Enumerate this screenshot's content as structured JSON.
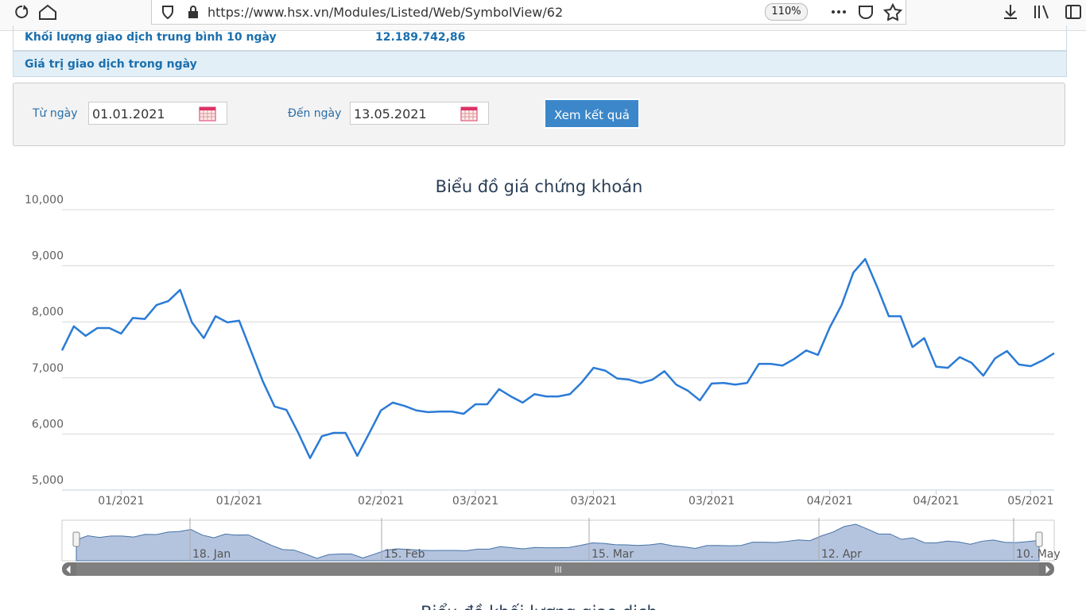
{
  "browser": {
    "url": "https://www.hsx.vn/Modules/Listed/Web/SymbolView/62",
    "zoom": "110%"
  },
  "info_table": {
    "rows": [
      [
        "Khối lượng giao dịch trung bình 10 ngày",
        "12.189.742,86"
      ],
      [
        "Giá trị giao dịch trong ngày"
      ]
    ]
  },
  "form": {
    "from_label": "Từ ngày",
    "from_value": "01.01.2021",
    "to_label": "Đến ngày",
    "to_value": "13.05.2021",
    "button": "Xem kết quả"
  },
  "chart_data": {
    "type": "line",
    "title": "Biểu đồ giá chứng khoán",
    "color": "#2b7bd6",
    "grid": true,
    "categories": [
      null,
      null,
      null,
      null,
      null,
      "01/2021",
      null,
      null,
      null,
      null,
      null,
      null,
      null,
      null,
      null,
      "01/2021",
      null,
      null,
      null,
      null,
      null,
      null,
      null,
      null,
      null,
      null,
      null,
      "02/2021",
      null,
      null,
      null,
      null,
      null,
      null,
      null,
      "03/2021",
      null,
      null,
      null,
      null,
      null,
      null,
      null,
      null,
      null,
      "03/2021",
      null,
      null,
      null,
      null,
      null,
      null,
      null,
      null,
      null,
      "03/2021",
      null,
      null,
      null,
      null,
      null,
      null,
      null,
      null,
      null,
      "04/2021",
      null,
      null,
      null,
      null,
      null,
      null,
      null,
      null,
      "04/2021",
      null,
      null,
      null,
      null,
      null,
      null,
      null,
      "05/2021",
      null,
      null
    ],
    "values": [
      7490,
      7920,
      7750,
      7890,
      7890,
      7790,
      8070,
      8050,
      8300,
      8370,
      8570,
      7990,
      7710,
      8100,
      7990,
      8020,
      7480,
      6940,
      6490,
      6430,
      6020,
      5570,
      5960,
      6020,
      6020,
      5610,
      6010,
      6420,
      6560,
      6500,
      6420,
      6390,
      6400,
      6400,
      6360,
      6530,
      6530,
      6800,
      6670,
      6560,
      6710,
      6670,
      6670,
      6710,
      6920,
      7180,
      7130,
      6990,
      6970,
      6910,
      6970,
      7120,
      6880,
      6770,
      6600,
      6900,
      6910,
      6880,
      6910,
      7250,
      7250,
      7220,
      7340,
      7490,
      7410,
      7900,
      8300,
      8880,
      9120,
      8630,
      8100,
      8100,
      7550,
      7710,
      7200,
      7180,
      7370,
      7270,
      7040,
      7350,
      7480,
      7240,
      7210,
      7310,
      7440
    ],
    "ylim": [
      5000,
      10000
    ],
    "yticks": [
      {
        "value": 5000,
        "label": "5,000"
      },
      {
        "value": 6000,
        "label": "6,000"
      },
      {
        "value": 7000,
        "label": "7,000"
      },
      {
        "value": 8000,
        "label": "8,000"
      },
      {
        "value": 9000,
        "label": "9,000"
      },
      {
        "value": 10000,
        "label": "10,000"
      }
    ],
    "navigator_labels": [
      "18. Jan",
      "15. Feb",
      "15. Mar",
      "12. Apr",
      "10. May"
    ]
  },
  "next_chart_title": "Biểu đồ khối lượng giao dịch"
}
